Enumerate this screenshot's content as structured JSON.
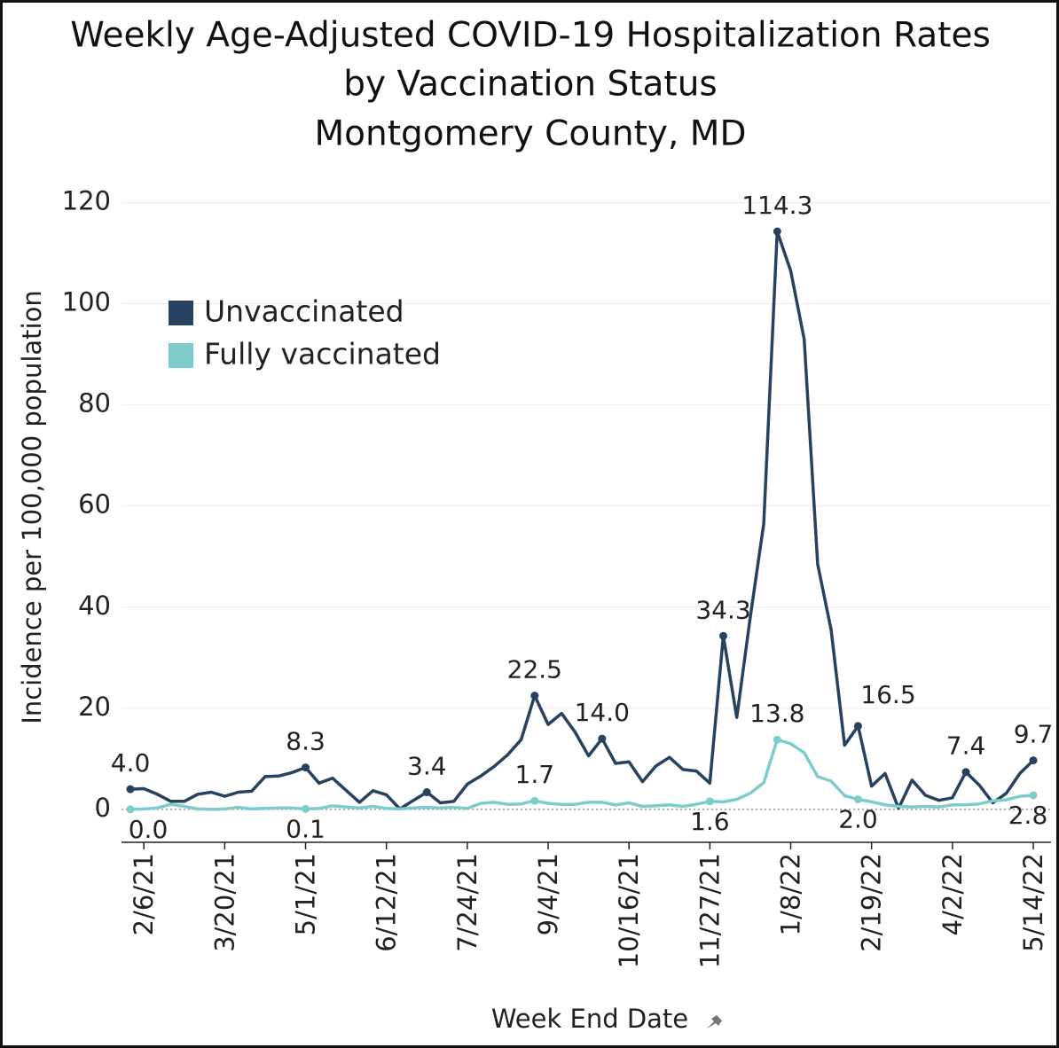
{
  "chart_data": {
    "type": "line",
    "title": [
      "Weekly Age-Adjusted COVID-19 Hospitalization Rates",
      "by Vaccination Status",
      "Montgomery County, MD"
    ],
    "x_label": "Week End Date",
    "y_label": "Incidence per 100,000 population",
    "categories": [
      null,
      "2/6/21",
      null,
      null,
      null,
      null,
      null,
      "3/20/21",
      null,
      null,
      null,
      null,
      null,
      "5/1/21",
      null,
      null,
      null,
      null,
      null,
      "6/12/21",
      null,
      null,
      null,
      null,
      null,
      "7/24/21",
      null,
      null,
      null,
      null,
      null,
      "9/4/21",
      null,
      null,
      null,
      null,
      null,
      "10/16/21",
      null,
      null,
      null,
      null,
      null,
      "11/27/21",
      null,
      null,
      null,
      null,
      null,
      "1/8/22",
      null,
      null,
      null,
      null,
      null,
      "2/19/22",
      null,
      null,
      null,
      null,
      null,
      "4/2/22",
      null,
      null,
      null,
      null,
      null,
      "5/14/22"
    ],
    "series": [
      {
        "name": "Unvaccinated",
        "color": "#27425f",
        "values": [
          4.0,
          4.1,
          3.0,
          1.6,
          1.6,
          3.0,
          3.4,
          2.6,
          3.4,
          3.6,
          6.5,
          6.6,
          7.3,
          8.3,
          5.2,
          6.2,
          3.8,
          1.4,
          3.7,
          2.9,
          0.1,
          1.8,
          3.4,
          1.3,
          1.6,
          5.0,
          6.6,
          8.5,
          10.8,
          13.8,
          22.5,
          16.8,
          19.0,
          15.3,
          10.6,
          14.0,
          9.1,
          9.4,
          5.5,
          8.6,
          10.3,
          7.9,
          7.6,
          5.2,
          34.3,
          18.2,
          38,
          56.5,
          114.3,
          106.5,
          93,
          48.5,
          35.5,
          12.7,
          16.5,
          4.6,
          7.1,
          0.2,
          5.8,
          2.8,
          1.8,
          2.3,
          7.4,
          4.8,
          1.3,
          3.2,
          7.1,
          9.7
        ],
        "value_labels": [
          "4.0",
          null,
          null,
          null,
          null,
          null,
          null,
          null,
          null,
          null,
          null,
          null,
          null,
          "8.3",
          null,
          null,
          null,
          null,
          null,
          null,
          null,
          null,
          "3.4",
          null,
          null,
          null,
          null,
          null,
          null,
          null,
          "22.5",
          null,
          null,
          null,
          null,
          "14.0",
          null,
          null,
          null,
          null,
          null,
          null,
          null,
          null,
          "34.3",
          null,
          null,
          null,
          "114.3",
          null,
          null,
          null,
          null,
          null,
          "16.5",
          null,
          null,
          null,
          null,
          null,
          null,
          null,
          "7.4",
          null,
          null,
          null,
          null,
          "9.7"
        ]
      },
      {
        "name": "Fully vaccinated",
        "color": "#7ecbcc",
        "values": [
          0.0,
          0.1,
          0.3,
          1.0,
          0.6,
          0.1,
          0.0,
          0.1,
          0.4,
          0.1,
          0.2,
          0.3,
          0.3,
          0.1,
          0.2,
          0.7,
          0.5,
          0.3,
          0.6,
          0.2,
          0.1,
          0.3,
          0.4,
          0.3,
          0.4,
          0.2,
          1.2,
          1.4,
          1.0,
          1.1,
          1.7,
          1.2,
          1.0,
          1.0,
          1.4,
          1.4,
          0.9,
          1.3,
          0.6,
          0.7,
          0.9,
          0.6,
          1.0,
          1.6,
          1.5,
          2.0,
          3.2,
          5.3,
          13.8,
          13.0,
          11.2,
          6.5,
          5.6,
          2.7,
          2.0,
          1.5,
          0.9,
          0.6,
          0.5,
          0.6,
          0.5,
          0.9,
          0.9,
          1.1,
          1.7,
          1.9,
          2.6,
          2.8
        ],
        "value_labels": [
          "0.0",
          null,
          null,
          null,
          null,
          null,
          null,
          null,
          null,
          null,
          null,
          null,
          null,
          "0.1",
          null,
          null,
          null,
          null,
          null,
          null,
          null,
          null,
          null,
          null,
          null,
          null,
          null,
          null,
          null,
          null,
          "1.7",
          null,
          null,
          null,
          null,
          null,
          null,
          null,
          null,
          null,
          null,
          null,
          null,
          "1.6",
          null,
          null,
          null,
          null,
          "13.8",
          null,
          null,
          null,
          null,
          null,
          "2.0",
          null,
          null,
          null,
          null,
          null,
          null,
          null,
          null,
          null,
          null,
          null,
          null,
          "2.8"
        ]
      }
    ],
    "ylim": [
      -6.5,
      125
    ],
    "yticks": [
      0,
      20,
      40,
      60,
      80,
      100,
      120
    ],
    "grid": true,
    "legend": "upper left"
  }
}
